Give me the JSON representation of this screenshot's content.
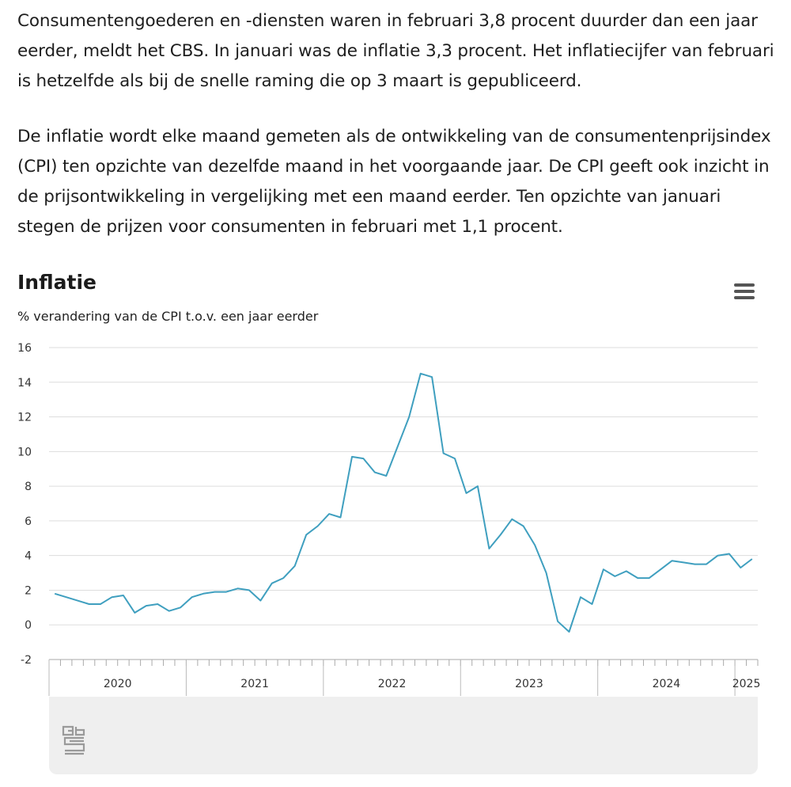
{
  "article": {
    "paragraphs": [
      "Consumentengoederen en -diensten waren in februari 3,8 procent duurder dan een jaar eerder, meldt het CBS. In januari was de inflatie 3,3 procent. Het inflatiecijfer van februari is hetzelfde als bij de snelle raming die op 3 maart is gepubliceerd.",
      "De inflatie wordt elke maand gemeten als de ontwikkeling van de consumentenprijsindex (CPI) ten opzichte van dezelfde maand in het voorgaande jaar. De CPI geeft ook inzicht in de prijsontwikkeling in vergelijking met een maand eerder. Ten opzichte van januari stegen de prijzen voor consumenten in februari met 1,1 procent."
    ]
  },
  "chart": {
    "menu_icon": "hamburger-menu-icon",
    "logo_icon": "cbs-logo-icon"
  },
  "chart_data": {
    "type": "line",
    "title": "Inflatie",
    "subtitle": "% verandering van de CPI t.o.v. een jaar eerder",
    "xlabel": "",
    "ylabel": "",
    "ylim": [
      -2,
      16
    ],
    "yticks": [
      -2,
      0,
      2,
      4,
      6,
      8,
      10,
      12,
      14,
      16
    ],
    "xticks": [
      "2020",
      "2021",
      "2022",
      "2023",
      "2024",
      "2025"
    ],
    "grid": true,
    "legend": "none",
    "line_color": "#3f9fbf",
    "x_start": "2020-01",
    "series": [
      {
        "values": [
          1.8,
          1.6,
          1.4,
          1.2,
          1.2,
          1.6,
          1.7,
          0.7,
          1.1,
          1.2,
          0.8,
          1.0,
          1.6,
          1.8,
          1.9,
          1.9,
          2.1,
          2.0,
          1.4,
          2.4,
          2.7,
          3.4,
          5.2,
          5.7,
          6.4,
          6.2,
          9.7,
          9.6,
          8.8,
          8.6,
          10.3,
          12.0,
          14.5,
          14.3,
          9.9,
          9.6,
          7.6,
          8.0,
          4.4,
          5.2,
          6.1,
          5.7,
          4.6,
          3.0,
          0.2,
          -0.4,
          1.6,
          1.2,
          3.2,
          2.8,
          3.1,
          2.7,
          2.7,
          3.2,
          3.7,
          3.6,
          3.5,
          3.5,
          4.0,
          4.1,
          3.3,
          3.8
        ]
      }
    ]
  }
}
